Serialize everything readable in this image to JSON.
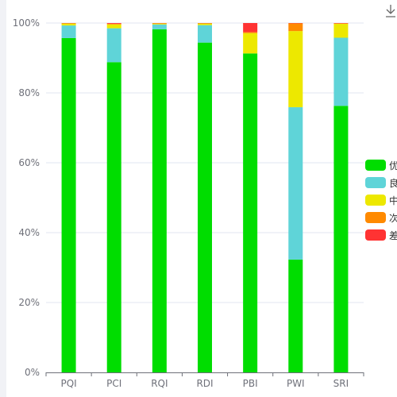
{
  "chart_data": {
    "type": "bar",
    "stacked": true,
    "categories": [
      "PQI",
      "PCI",
      "RQI",
      "RDI",
      "PBI",
      "PWI",
      "SRI"
    ],
    "series": [
      {
        "name": "优",
        "color": "#00dd00",
        "values": [
          95.7,
          88.8,
          98.2,
          94.4,
          91.3,
          32.3,
          76.3
        ]
      },
      {
        "name": "良",
        "color": "#5fd4d8",
        "values": [
          3.6,
          9.7,
          1.4,
          5.0,
          0.0,
          43.6,
          19.5
        ]
      },
      {
        "name": "中",
        "color": "#ede800",
        "values": [
          0.6,
          1.1,
          0.3,
          0.5,
          5.8,
          21.8,
          4.0
        ]
      },
      {
        "name": "次",
        "color": "#ff8a00",
        "values": [
          0.0,
          0.2,
          0.0,
          0.0,
          0.3,
          2.2,
          0.1
        ]
      },
      {
        "name": "差",
        "color": "#ff3333",
        "values": [
          0.1,
          0.2,
          0.1,
          0.1,
          2.6,
          0.1,
          0.1
        ]
      }
    ],
    "y_ticks": [
      "0%",
      "20%",
      "40%",
      "60%",
      "80%",
      "100%"
    ],
    "ylim": [
      0,
      100
    ],
    "grid": true,
    "legend_position": "right"
  },
  "toolbar": {
    "download_icon": "download-icon"
  }
}
